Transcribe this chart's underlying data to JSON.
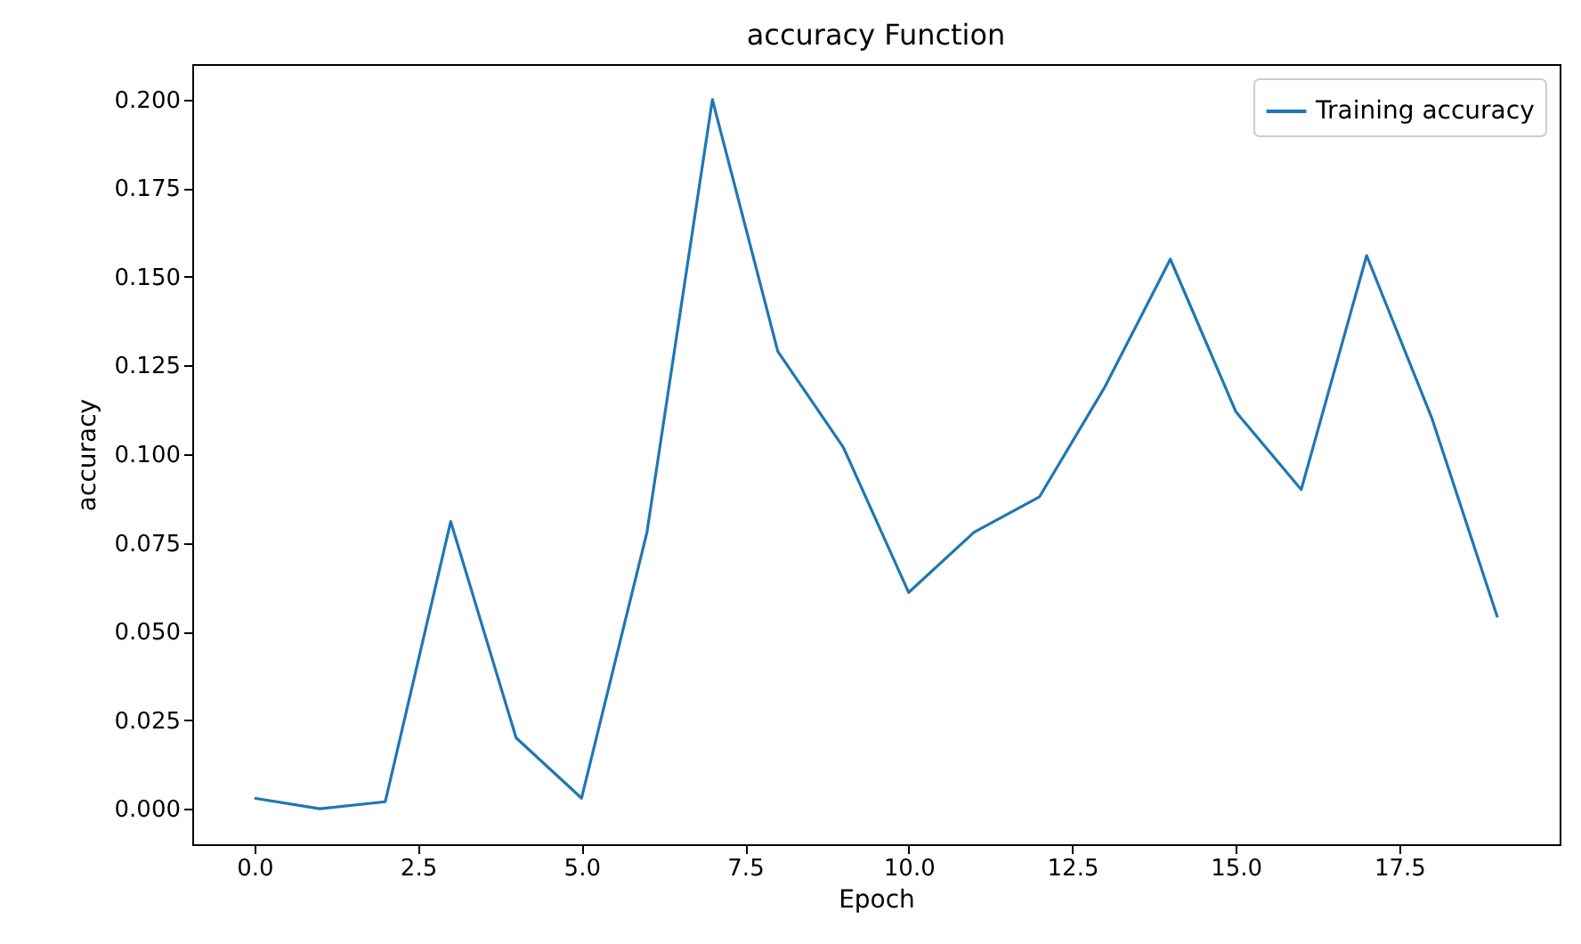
{
  "chart_data": {
    "type": "line",
    "title": "accuracy Function",
    "xlabel": "Epoch",
    "ylabel": "accuracy",
    "x": [
      0,
      1,
      2,
      3,
      4,
      5,
      6,
      7,
      8,
      9,
      10,
      11,
      12,
      13,
      14,
      15,
      16,
      17,
      18,
      19
    ],
    "series": [
      {
        "name": "Training accuracy",
        "color": "#1f77b4",
        "values": [
          0.003,
          0.0,
          0.002,
          0.081,
          0.02,
          0.003,
          0.078,
          0.2,
          0.129,
          0.102,
          0.061,
          0.078,
          0.088,
          0.119,
          0.155,
          0.112,
          0.09,
          0.156,
          0.11,
          0.054
        ]
      }
    ],
    "xlim": [
      -0.95,
      19.95
    ],
    "ylim": [
      -0.01,
      0.21
    ],
    "xticks": [
      {
        "value": 0,
        "label": "0.0"
      },
      {
        "value": 2.5,
        "label": "2.5"
      },
      {
        "value": 5,
        "label": "5.0"
      },
      {
        "value": 7.5,
        "label": "7.5"
      },
      {
        "value": 10,
        "label": "10.0"
      },
      {
        "value": 12.5,
        "label": "12.5"
      },
      {
        "value": 15,
        "label": "15.0"
      },
      {
        "value": 17.5,
        "label": "17.5"
      }
    ],
    "yticks": [
      {
        "value": 0,
        "label": "0.000"
      },
      {
        "value": 0.025,
        "label": "0.025"
      },
      {
        "value": 0.05,
        "label": "0.050"
      },
      {
        "value": 0.075,
        "label": "0.075"
      },
      {
        "value": 0.1,
        "label": "0.100"
      },
      {
        "value": 0.125,
        "label": "0.125"
      },
      {
        "value": 0.15,
        "label": "0.150"
      },
      {
        "value": 0.175,
        "label": "0.175"
      },
      {
        "value": 0.2,
        "label": "0.200"
      }
    ],
    "grid": false,
    "legend": "top right",
    "marker": "none",
    "line_style": "solid"
  }
}
